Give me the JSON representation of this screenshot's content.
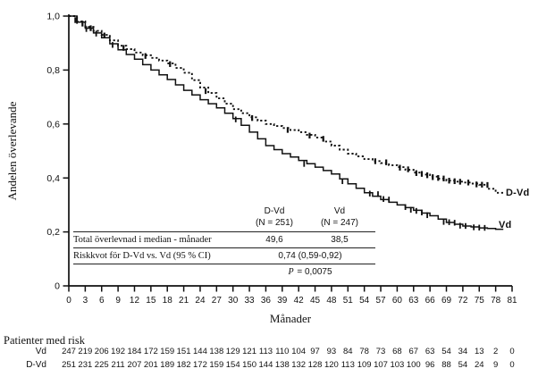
{
  "accent_color": "#111111",
  "chart_data": {
    "type": "line",
    "subtype": "kaplan-meier-step",
    "title": "",
    "xlabel": "Månader",
    "ylabel": "Andelen överlevande",
    "xlim": [
      0,
      81
    ],
    "ylim": [
      0,
      1.0
    ],
    "grid": "off",
    "legend_position": "end-of-curve-labels",
    "x_ticks": [
      0,
      3,
      6,
      9,
      12,
      15,
      18,
      21,
      24,
      27,
      30,
      33,
      36,
      39,
      42,
      45,
      48,
      51,
      54,
      57,
      60,
      63,
      66,
      69,
      72,
      75,
      78,
      81
    ],
    "y_tick_labels": [
      "0",
      "0,2",
      "0,4",
      "0,6",
      "0,8",
      "1,0"
    ],
    "y_tick_values": [
      0,
      0.2,
      0.4,
      0.6,
      0.8,
      1.0
    ],
    "series": [
      {
        "name": "D-Vd",
        "style": "dotted",
        "x": [
          0,
          3,
          6,
          9,
          12,
          15,
          18,
          21,
          24,
          27,
          30,
          33,
          36,
          39,
          42,
          45,
          48,
          51,
          54,
          57,
          60,
          63,
          66,
          69,
          72,
          75,
          78
        ],
        "values": [
          1.0,
          0.96,
          0.93,
          0.89,
          0.865,
          0.845,
          0.825,
          0.79,
          0.735,
          0.695,
          0.655,
          0.625,
          0.6,
          0.585,
          0.57,
          0.55,
          0.52,
          0.49,
          0.47,
          0.455,
          0.44,
          0.42,
          0.405,
          0.39,
          0.383,
          0.375,
          0.345
        ],
        "censor_marks": [
          [
            1.2,
            0.985
          ],
          [
            2.5,
            0.972
          ],
          [
            4,
            0.955
          ],
          [
            6.5,
            0.928
          ],
          [
            10,
            0.882
          ],
          [
            14,
            0.852
          ],
          [
            18.5,
            0.822
          ],
          [
            25,
            0.722
          ],
          [
            33.5,
            0.622
          ],
          [
            40,
            0.578
          ],
          [
            44,
            0.557
          ],
          [
            46.5,
            0.545
          ],
          [
            56,
            0.462
          ],
          [
            58,
            0.458
          ],
          [
            60.5,
            0.438
          ],
          [
            62,
            0.432
          ],
          [
            63.5,
            0.418
          ],
          [
            64.5,
            0.415
          ],
          [
            65.5,
            0.41
          ],
          [
            66.5,
            0.403
          ],
          [
            67.5,
            0.4
          ],
          [
            68.5,
            0.398
          ],
          [
            69.5,
            0.39
          ],
          [
            70.5,
            0.388
          ],
          [
            71.5,
            0.386
          ],
          [
            73,
            0.383
          ],
          [
            74.5,
            0.376
          ],
          [
            75.5,
            0.375
          ],
          [
            76.5,
            0.374
          ]
        ]
      },
      {
        "name": "Vd",
        "style": "solid",
        "x": [
          0,
          3,
          6,
          9,
          12,
          15,
          18,
          21,
          24,
          27,
          30,
          33,
          36,
          39,
          42,
          45,
          48,
          51,
          54,
          57,
          60,
          63,
          66,
          69,
          72,
          75,
          78
        ],
        "values": [
          1.0,
          0.955,
          0.92,
          0.875,
          0.84,
          0.8,
          0.765,
          0.725,
          0.69,
          0.66,
          0.62,
          0.57,
          0.52,
          0.49,
          0.465,
          0.44,
          0.415,
          0.378,
          0.345,
          0.32,
          0.3,
          0.28,
          0.26,
          0.235,
          0.222,
          0.215,
          0.21
        ],
        "censor_marks": [
          [
            1.5,
            0.982
          ],
          [
            3.2,
            0.952
          ],
          [
            5,
            0.935
          ],
          [
            8,
            0.893
          ],
          [
            30.5,
            0.617
          ],
          [
            43,
            0.452
          ],
          [
            50,
            0.388
          ],
          [
            55,
            0.342
          ],
          [
            56.5,
            0.34
          ],
          [
            57.5,
            0.322
          ],
          [
            58.5,
            0.32
          ],
          [
            61.5,
            0.292
          ],
          [
            62.5,
            0.282
          ],
          [
            63.5,
            0.278
          ],
          [
            64.5,
            0.272
          ],
          [
            65.5,
            0.262
          ],
          [
            68.5,
            0.237
          ],
          [
            69.5,
            0.236
          ],
          [
            70.5,
            0.234
          ],
          [
            71.5,
            0.223
          ],
          [
            72.5,
            0.222
          ],
          [
            74,
            0.217
          ],
          [
            75,
            0.216
          ],
          [
            76,
            0.215
          ]
        ]
      }
    ]
  },
  "stats_table": {
    "columns": [
      {
        "name": "D-Vd",
        "n": "(N = 251)"
      },
      {
        "name": "Vd",
        "n": "(N = 247)"
      }
    ],
    "median_row": {
      "label": "Total överlevnad i median - månader",
      "dvd": "49,6",
      "vd": "38,5"
    },
    "hr_row": {
      "label": "Riskkvot för D-Vd vs. Vd (95 % CI)",
      "value": "0,74 (0,59-0,92)"
    },
    "p_row": {
      "label": "P",
      "value": " = 0,0075"
    }
  },
  "risk_table": {
    "title": "Patienter med risk",
    "rows": [
      {
        "label": "Vd",
        "counts": [
          247,
          219,
          206,
          192,
          184,
          172,
          159,
          151,
          144,
          138,
          129,
          121,
          113,
          110,
          104,
          97,
          93,
          84,
          78,
          73,
          68,
          67,
          63,
          54,
          34,
          13,
          2,
          0
        ]
      },
      {
        "label": "D-Vd",
        "counts": [
          251,
          231,
          225,
          211,
          207,
          201,
          189,
          182,
          172,
          159,
          154,
          150,
          144,
          138,
          132,
          128,
          120,
          113,
          109,
          107,
          103,
          100,
          96,
          88,
          54,
          24,
          9,
          0
        ]
      }
    ]
  }
}
